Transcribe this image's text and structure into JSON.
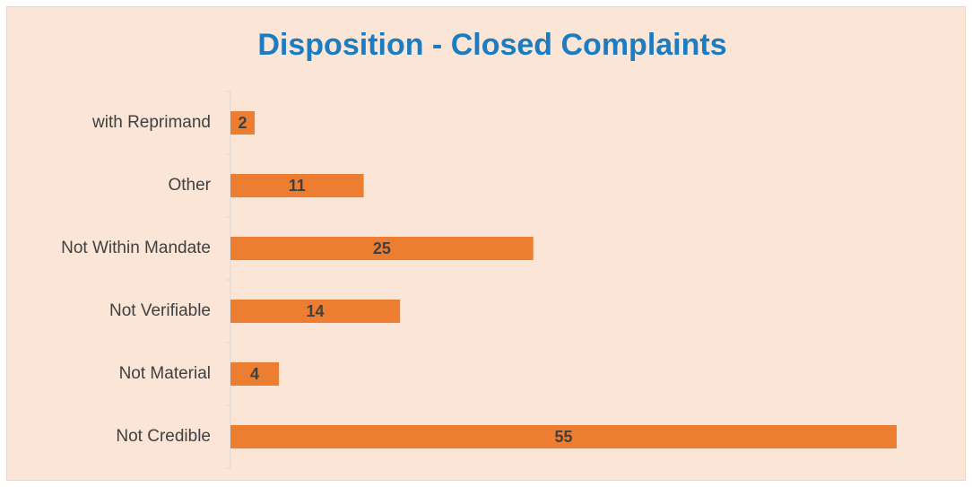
{
  "chart_data": {
    "type": "bar",
    "orientation": "horizontal",
    "title": "Disposition - Closed Complaints",
    "categories": [
      "with Reprimand",
      "Other",
      "Not Within Mandate",
      "Not Verifiable",
      "Not Material",
      "Not Credible"
    ],
    "values": [
      2,
      11,
      25,
      14,
      4,
      55
    ],
    "color": "#ed7d31",
    "background": "#fbe5d6"
  }
}
